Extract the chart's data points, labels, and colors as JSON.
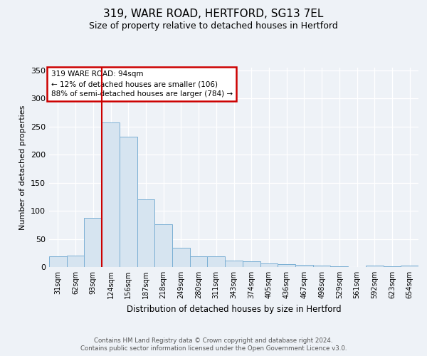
{
  "title": "319, WARE ROAD, HERTFORD, SG13 7EL",
  "subtitle": "Size of property relative to detached houses in Hertford",
  "xlabel": "Distribution of detached houses by size in Hertford",
  "ylabel": "Number of detached properties",
  "categories": [
    "31sqm",
    "62sqm",
    "93sqm",
    "124sqm",
    "156sqm",
    "187sqm",
    "218sqm",
    "249sqm",
    "280sqm",
    "311sqm",
    "343sqm",
    "374sqm",
    "405sqm",
    "436sqm",
    "467sqm",
    "498sqm",
    "529sqm",
    "561sqm",
    "592sqm",
    "623sqm",
    "654sqm"
  ],
  "values": [
    19,
    20,
    88,
    258,
    232,
    120,
    76,
    34,
    19,
    19,
    12,
    10,
    6,
    5,
    4,
    3,
    1,
    0,
    2,
    1,
    3
  ],
  "bar_color": "#d6e4f0",
  "bar_edge_color": "#7aafd4",
  "red_line_x": 2.5,
  "annotation_line1": "319 WARE ROAD: 94sqm",
  "annotation_line2": "← 12% of detached houses are smaller (106)",
  "annotation_line3": "88% of semi-detached houses are larger (784) →",
  "annotation_box_color": "#ffffff",
  "annotation_box_edge": "#cc0000",
  "ylim": [
    0,
    355
  ],
  "yticks": [
    0,
    50,
    100,
    150,
    200,
    250,
    300,
    350
  ],
  "background_color": "#eef2f7",
  "plot_background": "#eef2f7",
  "grid_color": "#ffffff",
  "footer_line1": "Contains HM Land Registry data © Crown copyright and database right 2024.",
  "footer_line2": "Contains public sector information licensed under the Open Government Licence v3.0."
}
